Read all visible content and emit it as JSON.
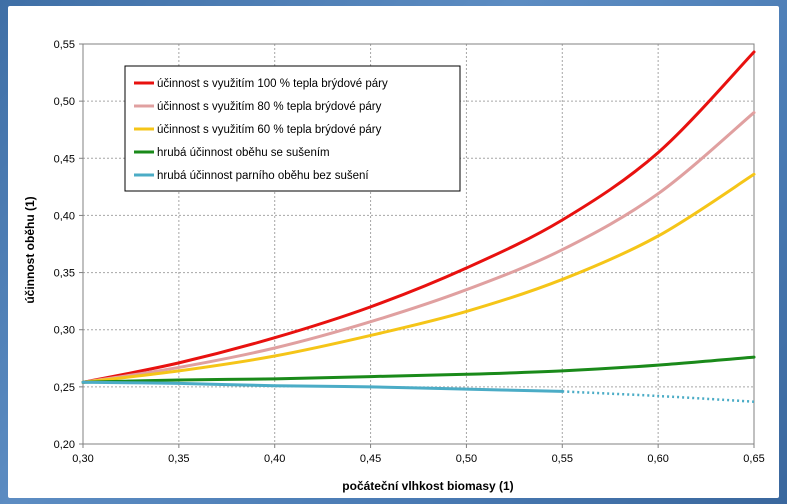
{
  "chart_data": {
    "type": "line",
    "xlabel": "počáteční vlhkost biomasy (1)",
    "ylabel": "účinnost oběhu (1)",
    "xlim": [
      0.3,
      0.65
    ],
    "ylim": [
      0.2,
      0.55
    ],
    "x_ticks": [
      0.3,
      0.35,
      0.4,
      0.45,
      0.5,
      0.55,
      0.6,
      0.65
    ],
    "y_ticks": [
      0.2,
      0.25,
      0.3,
      0.35,
      0.4,
      0.45,
      0.5,
      0.55
    ],
    "x_tick_labels": [
      "0,30",
      "0,35",
      "0,40",
      "0,45",
      "0,50",
      "0,55",
      "0,60",
      "0,65"
    ],
    "y_tick_labels": [
      "0,20",
      "0,25",
      "0,30",
      "0,35",
      "0,40",
      "0,45",
      "0,50",
      "0,55"
    ],
    "grid": true,
    "legend_position": "top-left",
    "series": [
      {
        "name": "účinnost s využitím 100 % tepla brýdové páry",
        "color": "#e8110f",
        "x": [
          0.3,
          0.35,
          0.4,
          0.45,
          0.5,
          0.55,
          0.6,
          0.65
        ],
        "y": [
          0.254,
          0.271,
          0.293,
          0.32,
          0.354,
          0.396,
          0.455,
          0.543
        ]
      },
      {
        "name": "účinnost s využitím 80 % tepla brýdové páry",
        "color": "#e0a0a0",
        "x": [
          0.3,
          0.35,
          0.4,
          0.45,
          0.5,
          0.55,
          0.6,
          0.65
        ],
        "y": [
          0.254,
          0.267,
          0.284,
          0.307,
          0.335,
          0.37,
          0.419,
          0.49
        ]
      },
      {
        "name": "účinnost s využitím 60 % tepla brýdové páry",
        "color": "#f5c518",
        "x": [
          0.3,
          0.35,
          0.4,
          0.45,
          0.5,
          0.55,
          0.6,
          0.65
        ],
        "y": [
          0.254,
          0.264,
          0.277,
          0.295,
          0.316,
          0.344,
          0.382,
          0.436
        ]
      },
      {
        "name": "hrubá účinnost oběhu se sušením",
        "color": "#1a8a1a",
        "x": [
          0.3,
          0.35,
          0.4,
          0.45,
          0.5,
          0.55,
          0.6,
          0.65
        ],
        "y": [
          0.254,
          0.256,
          0.257,
          0.259,
          0.261,
          0.264,
          0.269,
          0.276
        ]
      },
      {
        "name": "hrubá účinnost parního oběhu bez sušení",
        "color": "#4bacc6",
        "x": [
          0.3,
          0.35,
          0.4,
          0.45,
          0.5,
          0.55
        ],
        "y": [
          0.254,
          0.253,
          0.251,
          0.25,
          0.248,
          0.246
        ],
        "dotted_extension": {
          "x": [
            0.55,
            0.6,
            0.65
          ],
          "y": [
            0.246,
            0.242,
            0.237
          ]
        }
      }
    ]
  }
}
